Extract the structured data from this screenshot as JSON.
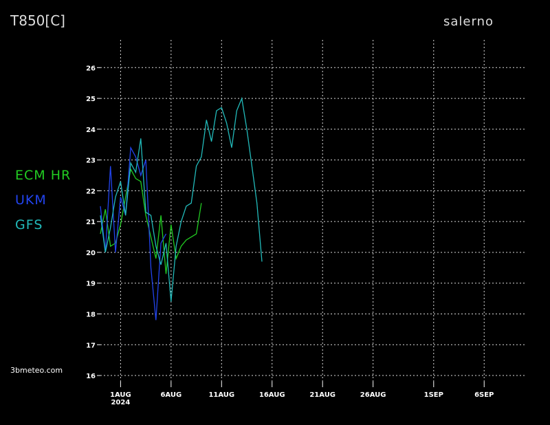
{
  "chart_data": {
    "type": "line",
    "title": "T850[C]",
    "subtitle": "salerno",
    "watermark": "3bmeteo.com",
    "x_sublabel": "2024",
    "xlim": [
      -2,
      40
    ],
    "ylim": [
      15.8,
      26.9
    ],
    "xticks": [
      {
        "value": 0,
        "label": "1AUG"
      },
      {
        "value": 5,
        "label": "6AUG"
      },
      {
        "value": 10,
        "label": "11AUG"
      },
      {
        "value": 15,
        "label": "16AUG"
      },
      {
        "value": 20,
        "label": "21AUG"
      },
      {
        "value": 25,
        "label": "26AUG"
      },
      {
        "value": 31,
        "label": "1SEP"
      },
      {
        "value": 36,
        "label": "6SEP"
      }
    ],
    "yticks": [
      16,
      17,
      18,
      19,
      20,
      21,
      22,
      23,
      24,
      25,
      26
    ],
    "grid": true,
    "series": [
      {
        "name": "ECM HR",
        "color": "#22cc22",
        "x": [
          -2,
          -1.5,
          -1,
          -0.5,
          0,
          0.5,
          1,
          1.5,
          2,
          2.5,
          3,
          3.5,
          4,
          4.5,
          5,
          5.5,
          6,
          6.5,
          7,
          7.5,
          8
        ],
        "values": [
          20.6,
          21.4,
          20.2,
          20.3,
          20.9,
          21.8,
          22.7,
          22.4,
          22.3,
          21.2,
          20.5,
          19.8,
          21.2,
          19.3,
          20.9,
          19.8,
          20.2,
          20.4,
          20.5,
          20.6,
          21.6
        ]
      },
      {
        "name": "UKM",
        "color": "#2244ee",
        "x": [
          -2,
          -1.5,
          -1,
          -0.5,
          0,
          0.5,
          1,
          1.5,
          2,
          2.5,
          3,
          3.5,
          4,
          4.5
        ],
        "values": [
          21.5,
          20.0,
          22.8,
          20.0,
          21.8,
          21.2,
          23.4,
          23.1,
          22.5,
          23.0,
          19.5,
          17.8,
          20.3,
          20.6
        ]
      },
      {
        "name": "GFS",
        "color": "#22bbbb",
        "x": [
          -2,
          -1.5,
          -1,
          -0.5,
          0,
          0.5,
          1,
          1.5,
          2,
          2.5,
          3,
          3.5,
          4,
          4.5,
          5,
          5.5,
          6,
          6.5,
          7,
          7.5,
          8,
          8.5,
          9,
          9.5,
          10,
          10.5,
          11,
          11.5,
          12,
          12.5,
          13,
          13.5,
          14
        ],
        "values": [
          21.2,
          20.0,
          20.8,
          21.8,
          22.3,
          21.2,
          22.9,
          22.6,
          23.7,
          21.3,
          21.2,
          20.2,
          19.6,
          20.3,
          18.4,
          20.2,
          21.0,
          21.5,
          21.6,
          22.8,
          23.1,
          24.3,
          23.6,
          24.6,
          24.7,
          24.2,
          23.4,
          24.6,
          25.0,
          24.0,
          22.8,
          21.6,
          19.7
        ]
      }
    ]
  }
}
